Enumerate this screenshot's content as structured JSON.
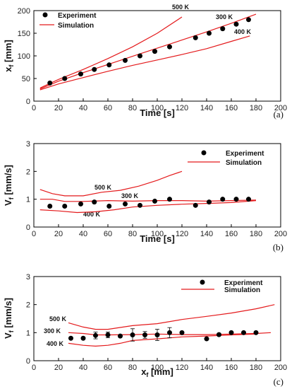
{
  "chart_data": [
    {
      "type": "scatter",
      "panel_label": "(a)",
      "xlabel": "Time [s]",
      "ylabel": "x_f [mm]",
      "xlim": [
        0,
        200
      ],
      "ylim": [
        0,
        200
      ],
      "xticks": [
        0,
        20,
        40,
        60,
        80,
        100,
        120,
        140,
        160,
        180,
        200
      ],
      "yticks": [
        0,
        50,
        100,
        150,
        200
      ],
      "legend": [
        "Experiment",
        "Simulation"
      ],
      "markers": {
        "name": "Experiment",
        "x": [
          13,
          25,
          38,
          49,
          61,
          74,
          86,
          98,
          110,
          131,
          142,
          153,
          164,
          174
        ],
        "y": [
          40,
          50,
          60,
          70,
          80,
          90,
          100,
          110,
          120,
          140,
          150,
          160,
          170,
          180
        ]
      },
      "lines": [
        {
          "name": "Simulation",
          "x": [
            5,
            20,
            40,
            60,
            80,
            100,
            120
          ],
          "y": [
            29,
            48,
            70,
            94,
            120,
            150,
            186
          ]
        },
        {
          "name": "Simulation",
          "x": [
            5,
            20,
            40,
            60,
            80,
            100,
            120,
            140,
            160,
            180
          ],
          "y": [
            27,
            44,
            63,
            81,
            99,
            117,
            135,
            153,
            172,
            192
          ]
        },
        {
          "name": "Simulation",
          "x": [
            5,
            20,
            40,
            60,
            80,
            100,
            120,
            140,
            160,
            175
          ],
          "y": [
            25,
            38,
            52,
            66,
            79,
            91,
            103,
            116,
            132,
            144
          ]
        }
      ],
      "annotations": [
        "500 K",
        "300 K",
        "400 K"
      ]
    },
    {
      "type": "scatter",
      "panel_label": "(b)",
      "xlabel": "Time [s]",
      "ylabel": "V_f [mm/s]",
      "xlim": [
        0,
        200
      ],
      "ylim": [
        0,
        3
      ],
      "xticks": [
        0,
        20,
        40,
        60,
        80,
        100,
        120,
        140,
        160,
        180,
        200
      ],
      "yticks": [
        0,
        1,
        2,
        3
      ],
      "legend": [
        "Experiment",
        "Simulation"
      ],
      "markers": {
        "name": "Experiment",
        "x": [
          13,
          25,
          38,
          49,
          61,
          74,
          86,
          98,
          110,
          131,
          142,
          153,
          164,
          174
        ],
        "y": [
          0.75,
          0.75,
          0.83,
          0.9,
          0.75,
          0.83,
          0.78,
          0.93,
          1.0,
          0.78,
          0.9,
          1.0,
          1.0,
          1.0
        ]
      },
      "lines": [
        {
          "name": "Simulation",
          "x": [
            5,
            15,
            25,
            40,
            55,
            70,
            85,
            100,
            110,
            120
          ],
          "y": [
            1.35,
            1.2,
            1.12,
            1.12,
            1.25,
            1.32,
            1.47,
            1.68,
            1.85,
            2.0
          ]
        },
        {
          "name": "Simulation",
          "x": [
            5,
            15,
            25,
            40,
            60,
            80,
            100,
            120,
            140,
            160,
            180
          ],
          "y": [
            1.0,
            1.0,
            0.92,
            0.92,
            0.95,
            0.93,
            0.95,
            0.95,
            0.93,
            0.95,
            0.97
          ]
        },
        {
          "name": "Simulation",
          "x": [
            5,
            20,
            35,
            50,
            65,
            80,
            100,
            120,
            140,
            160,
            180
          ],
          "y": [
            0.62,
            0.58,
            0.52,
            0.55,
            0.62,
            0.72,
            0.78,
            0.82,
            0.85,
            0.88,
            0.95
          ]
        }
      ],
      "annotations": [
        "500 K",
        "300 K",
        "400 K"
      ]
    },
    {
      "type": "scatter",
      "panel_label": "(c)",
      "xlabel": "x_f [mm]",
      "ylabel": "V_f [mm/s]",
      "xlim": [
        0,
        200
      ],
      "ylim": [
        0,
        3
      ],
      "xticks": [
        0,
        20,
        40,
        60,
        80,
        100,
        120,
        140,
        160,
        180,
        200
      ],
      "yticks": [
        0,
        1,
        2,
        3
      ],
      "legend": [
        "Experiment",
        "Simulation"
      ],
      "markers": {
        "name": "Experiment",
        "x": [
          30,
          40,
          50,
          60,
          70,
          80,
          90,
          100,
          110,
          120,
          140,
          150,
          160,
          170,
          180
        ],
        "y": [
          0.8,
          0.8,
          0.9,
          0.92,
          0.88,
          0.92,
          0.92,
          0.92,
          1.0,
          1.0,
          0.78,
          0.93,
          1.0,
          1.0,
          1.0
        ],
        "err": [
          0,
          0,
          0.12,
          0.1,
          0,
          0.22,
          0.12,
          0.2,
          0.18,
          0,
          0,
          0,
          0,
          0,
          0
        ]
      },
      "lines": [
        {
          "name": "Simulation",
          "x": [
            28,
            40,
            50,
            60,
            80,
            100,
            120,
            140,
            160,
            180,
            195
          ],
          "y": [
            1.35,
            1.2,
            1.12,
            1.12,
            1.25,
            1.32,
            1.47,
            1.58,
            1.7,
            1.85,
            2.0
          ]
        },
        {
          "name": "Simulation",
          "x": [
            28,
            40,
            50,
            60,
            80,
            100,
            120,
            140,
            160,
            180,
            192
          ],
          "y": [
            1.0,
            0.97,
            0.92,
            0.92,
            0.93,
            0.95,
            0.93,
            0.93,
            0.95,
            0.97,
            1.0
          ]
        },
        {
          "name": "Simulation",
          "x": [
            28,
            40,
            50,
            60,
            70,
            80,
            100,
            120,
            140,
            160,
            180
          ],
          "y": [
            0.62,
            0.55,
            0.52,
            0.55,
            0.62,
            0.72,
            0.78,
            0.85,
            0.88,
            0.92,
            0.95
          ]
        }
      ],
      "annotations": [
        "500 K",
        "300 K",
        "400 K"
      ]
    }
  ]
}
